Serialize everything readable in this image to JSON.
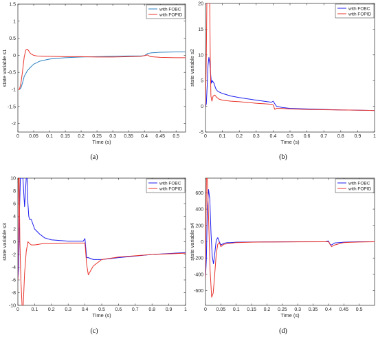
{
  "chart_data": [
    {
      "type": "line",
      "caption": "(a)",
      "xlabel": "Time (s)",
      "ylabel": "state variable s1",
      "xlim": [
        0,
        0.53
      ],
      "ylim": [
        -2.25,
        1.5
      ],
      "xticks": [
        0,
        0.05,
        0.1,
        0.15,
        0.2,
        0.25,
        0.3,
        0.35,
        0.4,
        0.45,
        0.5
      ],
      "xtick_labels": [
        "0",
        "0.05",
        "0.1",
        "0.15",
        "0.2",
        "0.25",
        "0.3",
        "0.35",
        "0.4",
        "0.45",
        "0.5"
      ],
      "yticks": [
        -2,
        -1.5,
        -1,
        -0.5,
        0,
        0.5,
        1,
        1.5
      ],
      "ytick_labels": [
        "-2",
        "-1.5",
        "-1",
        "-0.5",
        "0",
        "0.5",
        "1",
        "1.5"
      ],
      "legend_position": "top-right",
      "series": [
        {
          "name": "with FOBC",
          "color": "#2a7fc0",
          "x": [
            0,
            0.005,
            0.01,
            0.015,
            0.02,
            0.03,
            0.04,
            0.05,
            0.07,
            0.1,
            0.15,
            0.2,
            0.25,
            0.3,
            0.35,
            0.39,
            0.4,
            0.405,
            0.41,
            0.42,
            0.45,
            0.5,
            0.53
          ],
          "y": [
            -1.0,
            -1.0,
            -0.95,
            -0.8,
            -0.62,
            -0.45,
            -0.35,
            -0.26,
            -0.17,
            -0.11,
            -0.07,
            -0.05,
            -0.04,
            -0.03,
            -0.02,
            -0.02,
            -0.01,
            0.02,
            0.05,
            0.07,
            0.09,
            0.1,
            0.1
          ]
        },
        {
          "name": "with FOPID",
          "color": "#e8332b",
          "x": [
            0,
            0.005,
            0.01,
            0.015,
            0.02,
            0.025,
            0.03,
            0.035,
            0.04,
            0.05,
            0.06,
            0.08,
            0.1,
            0.15,
            0.2,
            0.25,
            0.3,
            0.35,
            0.39,
            0.4,
            0.41,
            0.415,
            0.42,
            0.45,
            0.5,
            0.53
          ],
          "y": [
            -1.0,
            -1.0,
            -0.8,
            -0.45,
            -0.05,
            0.15,
            0.18,
            0.12,
            0.05,
            0.0,
            -0.02,
            -0.03,
            -0.03,
            -0.04,
            -0.04,
            -0.05,
            -0.05,
            -0.04,
            -0.03,
            -0.01,
            0.01,
            -0.02,
            -0.04,
            -0.06,
            -0.07,
            -0.07
          ]
        }
      ]
    },
    {
      "type": "line",
      "caption": "(b)",
      "xlabel": "Time (s)",
      "ylabel": "state variable s2",
      "xlim": [
        0,
        1
      ],
      "ylim": [
        -5,
        20
      ],
      "xticks": [
        0,
        0.1,
        0.2,
        0.3,
        0.4,
        0.5,
        0.6,
        0.7,
        0.8,
        0.9,
        1
      ],
      "xtick_labels": [
        "0",
        "0.1",
        "0.2",
        "0.3",
        "0.4",
        "0.5",
        "0.6",
        "0.7",
        "0.8",
        "0.9",
        "1"
      ],
      "yticks": [
        -5,
        0,
        5,
        10,
        15,
        20
      ],
      "ytick_labels": [
        "-5",
        "0",
        "5",
        "10",
        "15",
        "20"
      ],
      "legend_position": "top-right",
      "series": [
        {
          "name": "with FOBC",
          "color": "#1c1cf0",
          "x": [
            0,
            0.005,
            0.01,
            0.015,
            0.02,
            0.025,
            0.03,
            0.035,
            0.04,
            0.05,
            0.06,
            0.07,
            0.08,
            0.1,
            0.15,
            0.2,
            0.3,
            0.39,
            0.4,
            0.41,
            0.42,
            0.45,
            0.5,
            0.6,
            0.8,
            1.0
          ],
          "y": [
            0,
            0.5,
            4,
            8,
            9.5,
            8.5,
            6.5,
            4.5,
            5.0,
            4.5,
            3.5,
            3.0,
            2.8,
            2.5,
            2.0,
            1.7,
            1.2,
            0.8,
            1.0,
            0.5,
            0.0,
            -0.2,
            -0.4,
            -0.5,
            -0.7,
            -0.8
          ]
        },
        {
          "name": "with FOPID",
          "color": "#e8332b",
          "x": [
            0,
            0.005,
            0.008,
            0.012,
            0.015,
            0.02,
            0.025,
            0.028,
            0.032,
            0.038,
            0.045,
            0.055,
            0.065,
            0.08,
            0.1,
            0.15,
            0.2,
            0.3,
            0.39,
            0.4,
            0.41,
            0.42,
            0.45,
            0.5,
            0.6,
            0.8,
            1.0
          ],
          "y": [
            0,
            10,
            20,
            20,
            20,
            20,
            20,
            10,
            2.0,
            1.0,
            2.0,
            2.2,
            1.8,
            1.4,
            1.2,
            1.0,
            0.9,
            0.6,
            0.4,
            0.3,
            -0.6,
            -0.4,
            -0.4,
            -0.5,
            -0.6,
            -0.7,
            -0.8
          ]
        }
      ]
    },
    {
      "type": "line",
      "caption": "(c)",
      "xlabel": "Time (s)",
      "ylabel": "state variable s3",
      "xlim": [
        0,
        1
      ],
      "ylim": [
        -10,
        10
      ],
      "xticks": [
        0,
        0.1,
        0.2,
        0.3,
        0.4,
        0.5,
        0.6,
        0.7,
        0.8,
        0.9,
        1
      ],
      "xtick_labels": [
        "0",
        "0.1",
        "0.2",
        "0.3",
        "0.4",
        "0.5",
        "0.6",
        "0.7",
        "0.8",
        "0.9",
        "1"
      ],
      "yticks": [
        -10,
        -8,
        -6,
        -4,
        -2,
        0,
        2,
        4,
        6,
        8,
        10
      ],
      "ytick_labels": [
        "-10",
        "-8",
        "-6",
        "-4",
        "-2",
        "0",
        "2",
        "4",
        "6",
        "8",
        "10"
      ],
      "legend_position": "top-right",
      "series": [
        {
          "name": "with FOBC",
          "color": "#1c1cf0",
          "x": [
            0,
            0.005,
            0.01,
            0.015,
            0.02,
            0.03,
            0.04,
            0.05,
            0.055,
            0.06,
            0.065,
            0.07,
            0.08,
            0.1,
            0.13,
            0.16,
            0.2,
            0.3,
            0.39,
            0.4,
            0.41,
            0.42,
            0.45,
            0.5,
            0.6,
            0.8,
            1.0
          ],
          "y": [
            -6,
            -4,
            5,
            10,
            10,
            10,
            5.5,
            10,
            10,
            6,
            4,
            3.5,
            3.5,
            2.0,
            1.2,
            0.6,
            0.3,
            0.1,
            0.1,
            0.5,
            -2.5,
            -2.5,
            -2.8,
            -2.8,
            -2.5,
            -2.0,
            -1.7
          ]
        },
        {
          "name": "with FOPID",
          "color": "#e8332b",
          "x": [
            0,
            0.004,
            0.008,
            0.012,
            0.018,
            0.025,
            0.032,
            0.04,
            0.05,
            0.06,
            0.07,
            0.08,
            0.1,
            0.15,
            0.2,
            0.3,
            0.39,
            0.4,
            0.41,
            0.42,
            0.45,
            0.5,
            0.6,
            0.8,
            1.0
          ],
          "y": [
            -6,
            10,
            10,
            0,
            -6,
            -10,
            -10,
            -5,
            -1.5,
            0,
            -0.3,
            -0.5,
            -0.5,
            -0.3,
            -0.3,
            -0.2,
            -0.2,
            -0.2,
            -3.5,
            -5.2,
            -3.8,
            -2.8,
            -2.4,
            -2.0,
            -1.8
          ]
        }
      ]
    },
    {
      "type": "line",
      "caption": "(d)",
      "xlabel": "Time (s)",
      "ylabel": "state variable s4",
      "xlim": [
        0,
        0.55
      ],
      "ylim": [
        -780,
        780
      ],
      "xticks": [
        0,
        0.05,
        0.1,
        0.15,
        0.2,
        0.25,
        0.3,
        0.35,
        0.4,
        0.45,
        0.5
      ],
      "xtick_labels": [
        "0",
        "0.05",
        "0.1",
        "0.15",
        "0.2",
        "0.25",
        "0.3",
        "0.35",
        "0.4",
        "0.45",
        "0.5"
      ],
      "yticks": [
        -600,
        -400,
        -200,
        0,
        200,
        400,
        600
      ],
      "ytick_labels": [
        "-600",
        "-400",
        "-200",
        "0",
        "200",
        "400",
        "600"
      ],
      "legend_position": "top-right",
      "series": [
        {
          "name": "with FOBC",
          "color": "#1c1cf0",
          "x": [
            0,
            0.003,
            0.006,
            0.01,
            0.014,
            0.018,
            0.022,
            0.026,
            0.03,
            0.035,
            0.04,
            0.045,
            0.05,
            0.06,
            0.07,
            0.08,
            0.1,
            0.15,
            0.2,
            0.3,
            0.39,
            0.4,
            0.405,
            0.41,
            0.42,
            0.45,
            0.5,
            0.55
          ],
          "y": [
            -450,
            -200,
            400,
            640,
            520,
            100,
            -180,
            -270,
            -150,
            20,
            50,
            0,
            -40,
            -20,
            -10,
            -10,
            -5,
            -3,
            -2,
            0,
            0,
            10,
            -30,
            -40,
            -15,
            -5,
            0,
            0
          ]
        },
        {
          "name": "with FOPID",
          "color": "#e8332b",
          "x": [
            0,
            0.003,
            0.006,
            0.01,
            0.015,
            0.02,
            0.025,
            0.03,
            0.035,
            0.04,
            0.045,
            0.05,
            0.06,
            0.07,
            0.08,
            0.1,
            0.15,
            0.2,
            0.3,
            0.39,
            0.4,
            0.41,
            0.42,
            0.45,
            0.5,
            0.55
          ],
          "y": [
            -450,
            780,
            780,
            300,
            -350,
            -680,
            -630,
            -400,
            -150,
            -30,
            -10,
            -60,
            -30,
            -25,
            -20,
            -10,
            -5,
            -3,
            -1,
            0,
            0,
            -60,
            -40,
            -10,
            -3,
            0
          ]
        }
      ]
    }
  ],
  "colors": {
    "axis": "#262626",
    "background": "#ffffff"
  }
}
